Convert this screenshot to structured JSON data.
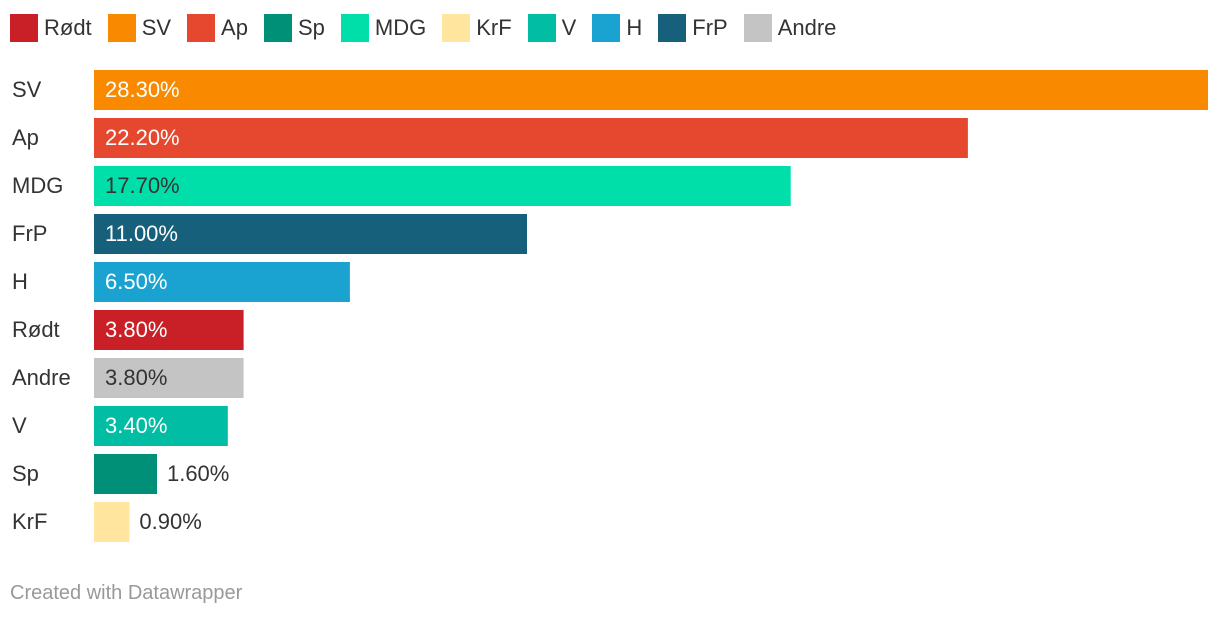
{
  "chart_data": {
    "type": "bar",
    "orientation": "horizontal",
    "title": "",
    "xlabel": "",
    "ylabel": "",
    "xlim": [
      0,
      28.3
    ],
    "grid": false,
    "legend_position": "top",
    "legend": [
      {
        "name": "Rødt",
        "color": "#c91f26"
      },
      {
        "name": "SV",
        "color": "#f98a00"
      },
      {
        "name": "Ap",
        "color": "#e5482e"
      },
      {
        "name": "Sp",
        "color": "#008f77"
      },
      {
        "name": "MDG",
        "color": "#00deaa"
      },
      {
        "name": "KrF",
        "color": "#ffe59d"
      },
      {
        "name": "V",
        "color": "#00bda4"
      },
      {
        "name": "H",
        "color": "#1aa2d1"
      },
      {
        "name": "FrP",
        "color": "#16607c"
      },
      {
        "name": "Andre",
        "color": "#c4c4c4"
      }
    ],
    "bars": [
      {
        "category": "SV",
        "value": 28.3,
        "label": "28.30%",
        "color": "#f98a00",
        "label_color": "#ffffff"
      },
      {
        "category": "Ap",
        "value": 22.2,
        "label": "22.20%",
        "color": "#e5482e",
        "label_color": "#ffffff"
      },
      {
        "category": "MDG",
        "value": 17.7,
        "label": "17.70%",
        "color": "#00deaa",
        "label_color": "#333333"
      },
      {
        "category": "FrP",
        "value": 11.0,
        "label": "11.00%",
        "color": "#16607c",
        "label_color": "#ffffff"
      },
      {
        "category": "H",
        "value": 6.5,
        "label": "6.50%",
        "color": "#1aa2d1",
        "label_color": "#ffffff"
      },
      {
        "category": "Rødt",
        "value": 3.8,
        "label": "3.80%",
        "color": "#c91f26",
        "label_color": "#ffffff"
      },
      {
        "category": "Andre",
        "value": 3.8,
        "label": "3.80%",
        "color": "#c4c4c4",
        "label_color": "#333333"
      },
      {
        "category": "V",
        "value": 3.4,
        "label": "3.40%",
        "color": "#00bda4",
        "label_color": "#ffffff"
      },
      {
        "category": "Sp",
        "value": 1.6,
        "label": "1.60%",
        "color": "#008f77",
        "label_color": "#333333"
      },
      {
        "category": "KrF",
        "value": 0.9,
        "label": "0.90%",
        "color": "#ffe59d",
        "label_color": "#333333"
      }
    ]
  },
  "footer": {
    "credit": "Created with Datawrapper"
  }
}
